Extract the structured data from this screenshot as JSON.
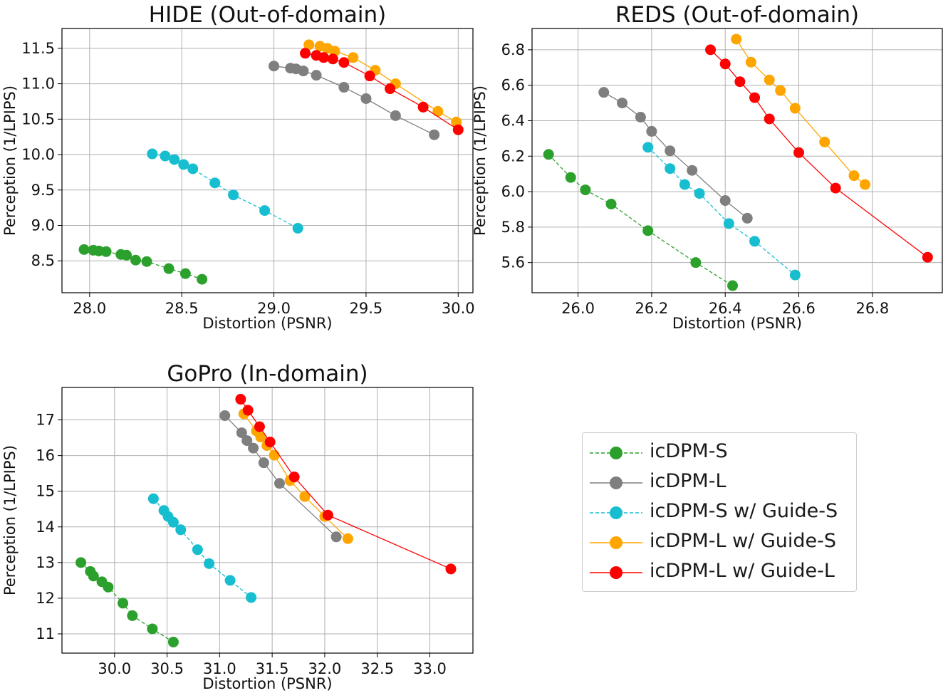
{
  "colors": {
    "icdpm_s": "#2ca02c",
    "icdpm_l": "#7f7f7f",
    "icdpm_s_guide_s": "#17becf",
    "icdpm_l_guide_s": "#ffa500",
    "icdpm_l_guide_l": "#ff0000"
  },
  "legend": {
    "placement": "center-right (fourth quadrant)",
    "items": [
      {
        "label": "icDPM-S",
        "color": "#2ca02c",
        "dashed": true
      },
      {
        "label": "icDPM-L",
        "color": "#7f7f7f",
        "dashed": false
      },
      {
        "label": "icDPM-S w/ Guide-S",
        "color": "#17becf",
        "dashed": true
      },
      {
        "label": "icDPM-L w/ Guide-S",
        "color": "#ffa500",
        "dashed": false
      },
      {
        "label": "icDPM-L w/ Guide-L",
        "color": "#ff0000",
        "dashed": false
      }
    ]
  },
  "chart_data": [
    {
      "type": "line",
      "title": "HIDE (Out-of-domain)",
      "xlabel": "Distortion (PSNR)",
      "ylabel": "Perception (1/LPIPS)",
      "xlim": [
        27.85,
        30.08
      ],
      "ylim": [
        8.05,
        11.78
      ],
      "xticks": [
        "28.0",
        "28.5",
        "29.0",
        "29.5",
        "30.0"
      ],
      "yticks": [
        "8.5",
        "9.0",
        "9.5",
        "10.0",
        "10.5",
        "11.0",
        "11.5"
      ],
      "grid": true,
      "series": [
        {
          "name": "icDPM-S",
          "color": "#2ca02c",
          "dashed": true,
          "x": [
            27.97,
            28.02,
            28.05,
            28.09,
            28.17,
            28.2,
            28.25,
            28.31,
            28.43,
            28.52,
            28.61
          ],
          "y": [
            8.66,
            8.65,
            8.64,
            8.63,
            8.59,
            8.58,
            8.51,
            8.49,
            8.39,
            8.32,
            8.24
          ]
        },
        {
          "name": "icDPM-L",
          "color": "#7f7f7f",
          "dashed": false,
          "x": [
            29.0,
            29.09,
            29.12,
            29.16,
            29.23,
            29.38,
            29.5,
            29.66,
            29.87
          ],
          "y": [
            11.25,
            11.22,
            11.21,
            11.18,
            11.12,
            10.95,
            10.79,
            10.55,
            10.28
          ]
        },
        {
          "name": "icDPM-S w/ Guide-S",
          "color": "#17becf",
          "dashed": true,
          "x": [
            28.34,
            28.41,
            28.46,
            28.51,
            28.56,
            28.68,
            28.78,
            28.95,
            29.13
          ],
          "y": [
            10.01,
            9.98,
            9.93,
            9.86,
            9.8,
            9.6,
            9.43,
            9.21,
            8.96
          ]
        },
        {
          "name": "icDPM-L w/ Guide-S",
          "color": "#ffa500",
          "dashed": false,
          "x": [
            29.19,
            29.25,
            29.29,
            29.33,
            29.43,
            29.55,
            29.66,
            29.89,
            29.99
          ],
          "y": [
            11.55,
            11.53,
            11.5,
            11.46,
            11.37,
            11.19,
            11.0,
            10.61,
            10.46
          ]
        },
        {
          "name": "icDPM-L w/ Guide-L",
          "color": "#ff0000",
          "dashed": false,
          "x": [
            29.17,
            29.23,
            29.27,
            29.32,
            29.38,
            29.52,
            29.63,
            29.81,
            30.0
          ],
          "y": [
            11.43,
            11.4,
            11.37,
            11.35,
            11.3,
            11.11,
            10.93,
            10.67,
            10.35
          ]
        }
      ]
    },
    {
      "type": "line",
      "title": "REDS (Out-of-domain)",
      "xlabel": "Distortion (PSNR)",
      "ylabel": "Perception (1/LPIPS)",
      "xlim": [
        25.875,
        26.99
      ],
      "ylim": [
        5.43,
        6.92
      ],
      "xticks": [
        "26.0",
        "26.2",
        "26.4",
        "26.6",
        "26.8"
      ],
      "yticks": [
        "5.6",
        "5.8",
        "6.0",
        "6.2",
        "6.4",
        "6.6",
        "6.8"
      ],
      "grid": true,
      "series": [
        {
          "name": "icDPM-S",
          "color": "#2ca02c",
          "dashed": true,
          "x": [
            25.92,
            25.98,
            26.02,
            26.09,
            26.19,
            26.32,
            26.42
          ],
          "y": [
            6.21,
            6.08,
            6.01,
            5.93,
            5.78,
            5.6,
            5.47
          ]
        },
        {
          "name": "icDPM-L",
          "color": "#7f7f7f",
          "dashed": false,
          "x": [
            26.07,
            26.12,
            26.17,
            26.2,
            26.25,
            26.31,
            26.4,
            26.46
          ],
          "y": [
            6.56,
            6.5,
            6.42,
            6.34,
            6.23,
            6.12,
            5.95,
            5.85
          ]
        },
        {
          "name": "icDPM-S w/ Guide-S",
          "color": "#17becf",
          "dashed": true,
          "x": [
            26.19,
            26.25,
            26.29,
            26.33,
            26.41,
            26.48,
            26.59
          ],
          "y": [
            6.25,
            6.13,
            6.04,
            5.99,
            5.82,
            5.72,
            5.53
          ]
        },
        {
          "name": "icDPM-L w/ Guide-S",
          "color": "#ffa500",
          "dashed": false,
          "x": [
            26.43,
            26.47,
            26.52,
            26.55,
            26.59,
            26.67,
            26.75,
            26.78
          ],
          "y": [
            6.86,
            6.73,
            6.63,
            6.57,
            6.47,
            6.28,
            6.09,
            6.04
          ]
        },
        {
          "name": "icDPM-L w/ Guide-L",
          "color": "#ff0000",
          "dashed": false,
          "x": [
            26.36,
            26.4,
            26.44,
            26.48,
            26.52,
            26.6,
            26.7,
            26.95
          ],
          "y": [
            6.8,
            6.72,
            6.62,
            6.53,
            6.41,
            6.22,
            6.02,
            5.63
          ]
        }
      ]
    },
    {
      "type": "line",
      "title": "GoPro (In-domain)",
      "xlabel": "Distortion (PSNR)",
      "ylabel": "Perception (1/LPIPS)",
      "xlim": [
        29.5,
        33.41
      ],
      "ylim": [
        10.46,
        17.91
      ],
      "xticks": [
        "30.0",
        "30.5",
        "31.0",
        "31.5",
        "32.0",
        "32.5",
        "33.0"
      ],
      "yticks": [
        "11",
        "12",
        "13",
        "14",
        "15",
        "16",
        "17"
      ],
      "grid": true,
      "series": [
        {
          "name": "icDPM-S",
          "color": "#2ca02c",
          "dashed": true,
          "x": [
            29.68,
            29.77,
            29.8,
            29.88,
            29.94,
            30.08,
            30.17,
            30.36,
            30.56
          ],
          "y": [
            13.0,
            12.75,
            12.62,
            12.46,
            12.31,
            11.86,
            11.51,
            11.14,
            10.77
          ]
        },
        {
          "name": "icDPM-L",
          "color": "#7f7f7f",
          "dashed": false,
          "x": [
            31.05,
            31.21,
            31.26,
            31.32,
            31.42,
            31.57,
            32.11
          ],
          "y": [
            17.12,
            16.64,
            16.42,
            16.21,
            15.8,
            15.22,
            13.72
          ]
        },
        {
          "name": "icDPM-S w/ Guide-S",
          "color": "#17becf",
          "dashed": true,
          "x": [
            30.37,
            30.47,
            30.51,
            30.56,
            30.63,
            30.79,
            30.9,
            31.1,
            31.3
          ],
          "y": [
            14.79,
            14.46,
            14.29,
            14.13,
            13.92,
            13.36,
            12.97,
            12.5,
            12.02
          ]
        },
        {
          "name": "icDPM-L w/ Guide-S",
          "color": "#ffa500",
          "dashed": false,
          "x": [
            31.23,
            31.35,
            31.39,
            31.45,
            31.52,
            31.67,
            31.81,
            32.0,
            32.22
          ],
          "y": [
            17.17,
            16.69,
            16.52,
            16.28,
            16.01,
            15.3,
            14.85,
            14.29,
            13.67
          ]
        },
        {
          "name": "icDPM-L w/ Guide-L",
          "color": "#ff0000",
          "dashed": false,
          "x": [
            31.2,
            31.27,
            31.38,
            31.48,
            31.71,
            32.03,
            33.2
          ],
          "y": [
            17.58,
            17.27,
            16.81,
            16.38,
            15.4,
            14.33,
            12.82
          ]
        }
      ]
    }
  ]
}
